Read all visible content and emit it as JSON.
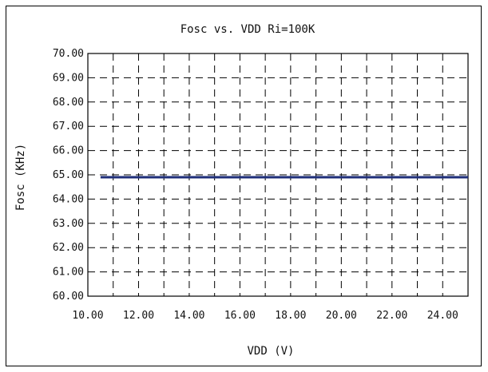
{
  "chart_data": {
    "type": "line",
    "title": "Fosc vs. VDD Ri=100K",
    "xlabel": "VDD (V)",
    "ylabel": "Fosc (KHz)",
    "xlim": [
      10,
      25
    ],
    "ylim": [
      60,
      70
    ],
    "x_ticks": [
      "10.00",
      "12.00",
      "14.00",
      "16.00",
      "18.00",
      "20.00",
      "22.00",
      "24.00"
    ],
    "y_ticks": [
      "60.00",
      "61.00",
      "62.00",
      "63.00",
      "64.00",
      "65.00",
      "66.00",
      "67.00",
      "68.00",
      "69.00",
      "70.00"
    ],
    "grid": true,
    "series": [
      {
        "color": "#1f2f7a",
        "x": [
          10.5,
          11,
          12,
          13,
          14,
          15,
          16,
          17,
          18,
          19,
          20,
          21,
          22,
          23,
          24,
          25
        ],
        "y": [
          64.9,
          64.9,
          64.9,
          64.9,
          64.9,
          64.9,
          64.9,
          64.9,
          64.9,
          64.9,
          64.9,
          64.9,
          64.9,
          64.9,
          64.9,
          64.9
        ]
      }
    ]
  }
}
